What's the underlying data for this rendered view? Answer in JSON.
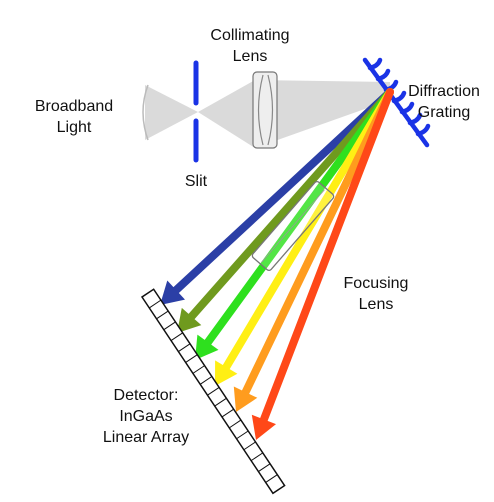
{
  "labels": {
    "broadband_line1": "Broadband",
    "broadband_line2": "Light",
    "collimating_line1": "Collimating",
    "collimating_line2": "Lens",
    "slit": "Slit",
    "diffraction_line1": "Diffraction",
    "diffraction_line2": "Grating",
    "focusing_line1": "Focusing",
    "focusing_line2": "Lens",
    "detector_line1": "Detector:",
    "detector_line2": "InGaAs",
    "detector_line3": "Linear Array"
  },
  "colors": {
    "slit": "#1a33e6",
    "grating": "#1a33e6",
    "beam": "#d6d6d6",
    "lens_outline": "#777777",
    "ray_blue": "#2b3fa6",
    "ray_olive": "#6f9a1e",
    "ray_green": "#2ee01e",
    "ray_yellow": "#ffef14",
    "ray_orange": "#ff9c1e",
    "ray_red": "#ff4818"
  },
  "rays": [
    "ray_blue",
    "ray_olive",
    "ray_green",
    "ray_yellow",
    "ray_orange",
    "ray_red"
  ]
}
